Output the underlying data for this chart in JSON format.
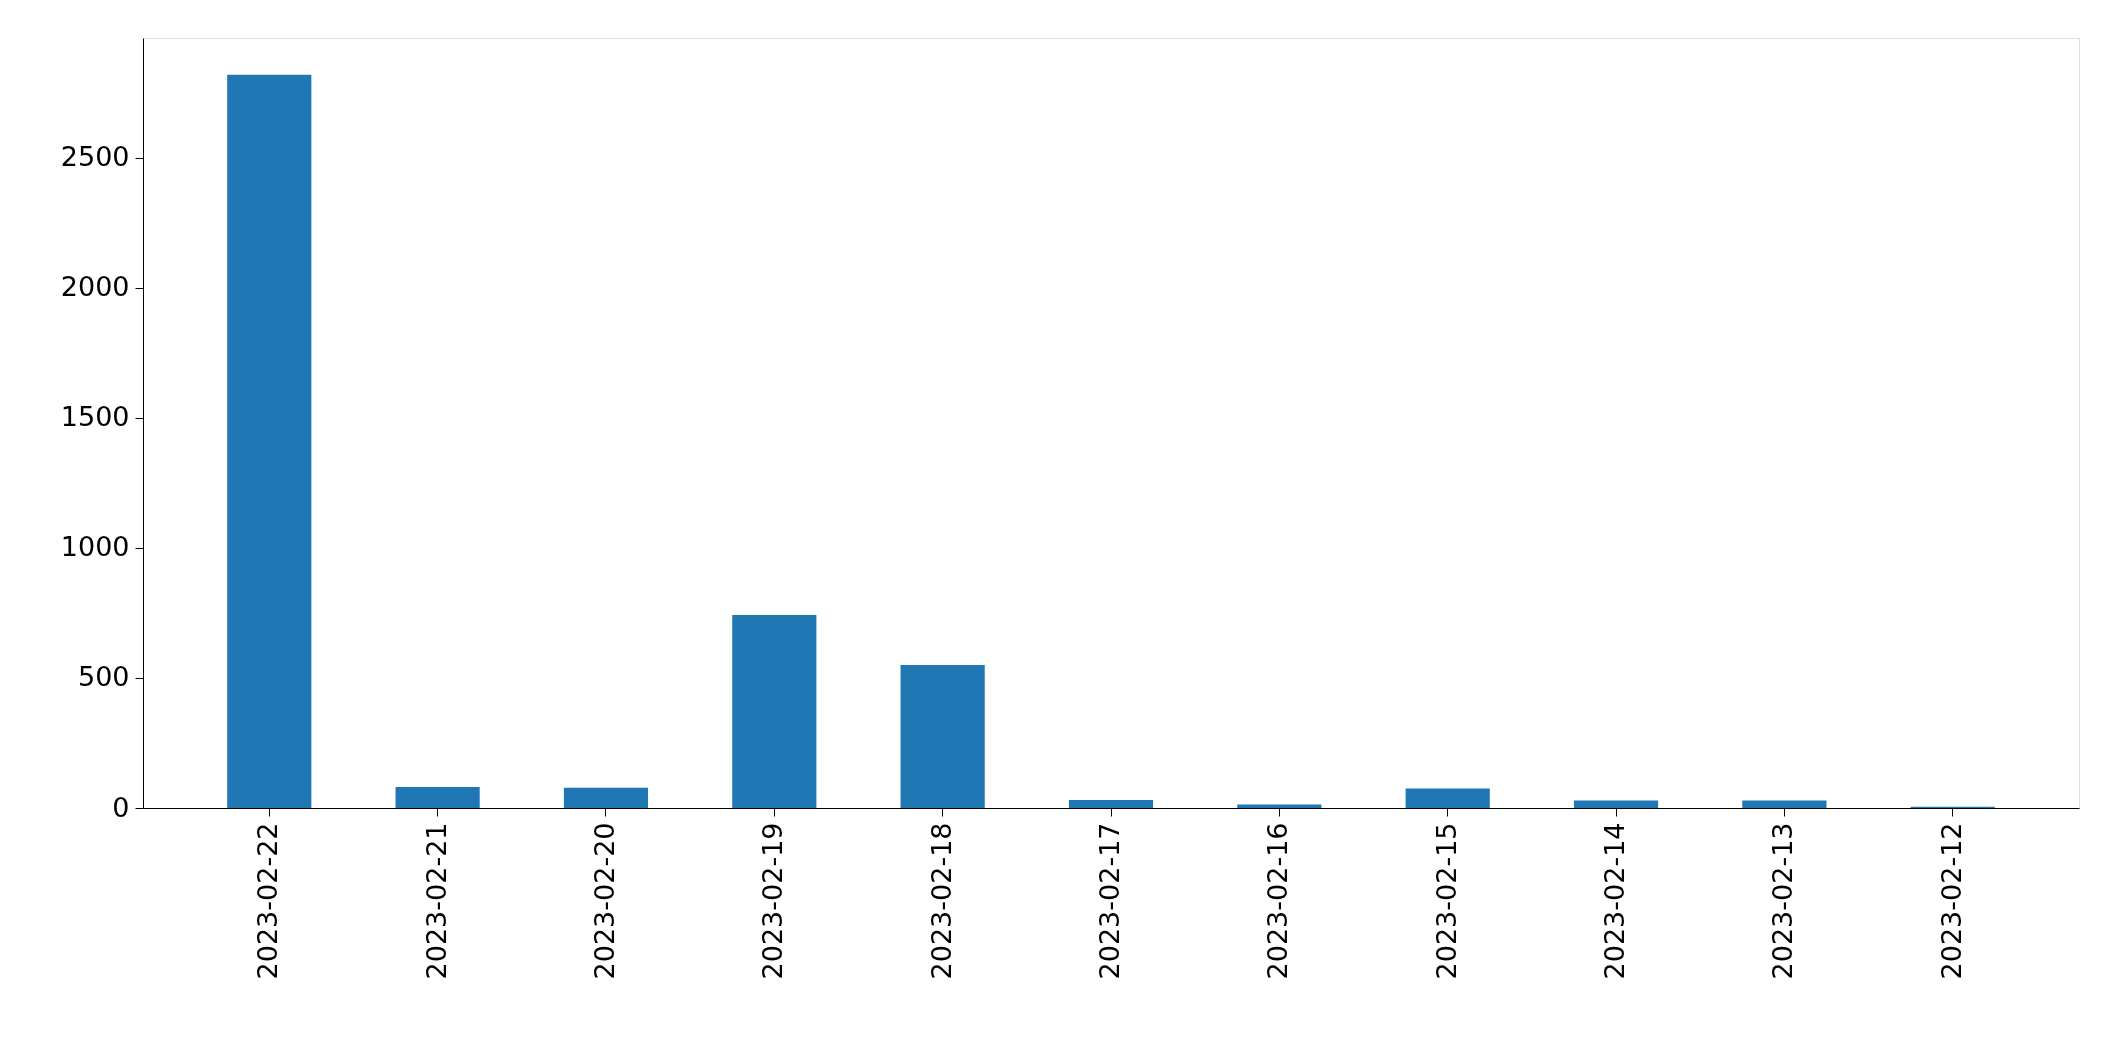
{
  "chart_data": {
    "type": "bar",
    "categories": [
      "2023-02-22",
      "2023-02-21",
      "2023-02-20",
      "2023-02-19",
      "2023-02-18",
      "2023-02-17",
      "2023-02-16",
      "2023-02-15",
      "2023-02-14",
      "2023-02-13",
      "2023-02-12"
    ],
    "values": [
      2820,
      81,
      78,
      742,
      550,
      31,
      13,
      75,
      29,
      29,
      5
    ],
    "color": "#1f77b4",
    "ylim": [
      0,
      2961
    ],
    "yticks": [
      0,
      500,
      1000,
      1500,
      2000,
      2500
    ],
    "grid": false
  }
}
